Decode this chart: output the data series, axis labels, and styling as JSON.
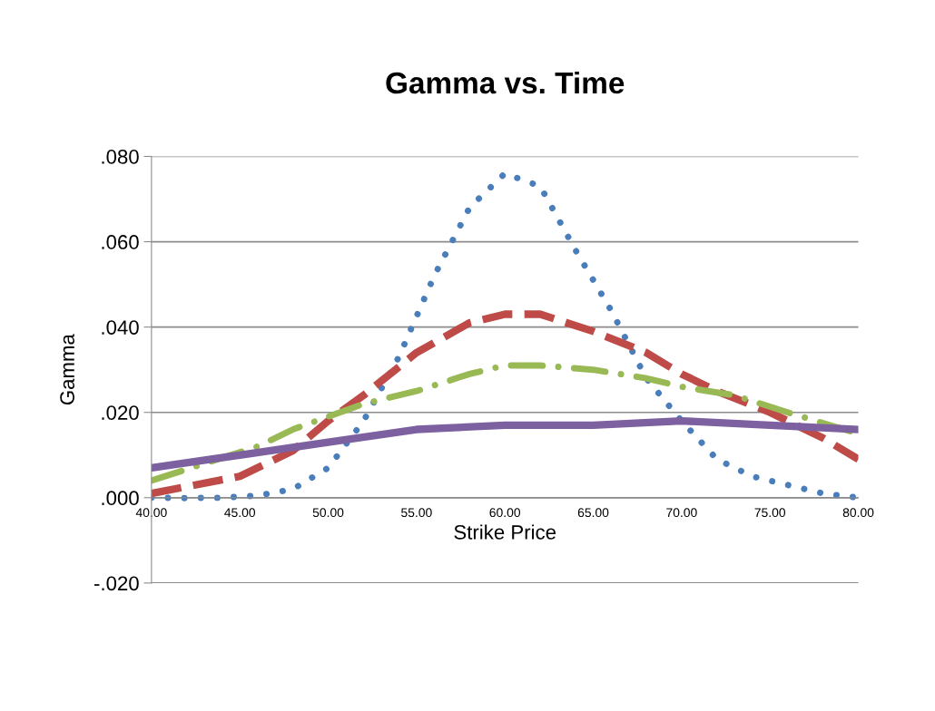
{
  "chart_data": {
    "type": "line",
    "title": "Gamma vs. Time",
    "xlabel": "Strike Price",
    "ylabel": "Gamma",
    "xlim": [
      40,
      80
    ],
    "xticks": [
      {
        "value": 40,
        "label": "40.00"
      },
      {
        "value": 45,
        "label": "45.00"
      },
      {
        "value": 50,
        "label": "50.00"
      },
      {
        "value": 55,
        "label": "55.00"
      },
      {
        "value": 60,
        "label": "60.00"
      },
      {
        "value": 65,
        "label": "65.00"
      },
      {
        "value": 70,
        "label": "70.00"
      },
      {
        "value": 75,
        "label": "75.00"
      },
      {
        "value": 80,
        "label": "80.00"
      }
    ],
    "ylim": [
      -0.02,
      0.08
    ],
    "yticks": [
      {
        "value": -0.02,
        "label": "-.020"
      },
      {
        "value": 0,
        "label": ".000"
      },
      {
        "value": 0.02,
        "label": ".020"
      },
      {
        "value": 0.04,
        "label": ".040"
      },
      {
        "value": 0.06,
        "label": ".060"
      },
      {
        "value": 0.08,
        "label": ".080"
      }
    ],
    "grid": "y",
    "legend": false,
    "marker": "none",
    "series": [
      {
        "color": "#4a7ebb",
        "line_style": "dotted",
        "x": [
          40,
          42,
          44,
          46,
          48,
          50,
          52,
          54,
          56,
          58,
          60,
          62,
          64,
          66,
          68,
          70,
          72,
          74,
          76,
          78,
          80
        ],
        "values": [
          0.0,
          -0.0001,
          0.0,
          0.0005,
          0.002,
          0.007,
          0.018,
          0.033,
          0.052,
          0.068,
          0.076,
          0.073,
          0.058,
          0.044,
          0.028,
          0.018,
          0.009,
          0.005,
          0.003,
          0.001,
          0.0
        ]
      },
      {
        "color": "#be4b48",
        "line_style": "dashed",
        "x": [
          40,
          45,
          48,
          50,
          52,
          55,
          58,
          60,
          62,
          65,
          68,
          70,
          72,
          75,
          78,
          80
        ],
        "values": [
          0.001,
          0.005,
          0.011,
          0.018,
          0.024,
          0.034,
          0.041,
          0.043,
          0.043,
          0.039,
          0.034,
          0.029,
          0.025,
          0.02,
          0.014,
          0.009
        ]
      },
      {
        "color": "#98b954",
        "line_style": "dashdot",
        "x": [
          40,
          43,
          46,
          48,
          50,
          52,
          55,
          58,
          60,
          62,
          65,
          68,
          70,
          73,
          76,
          80
        ],
        "values": [
          0.004,
          0.008,
          0.012,
          0.016,
          0.019,
          0.022,
          0.025,
          0.029,
          0.031,
          0.031,
          0.03,
          0.028,
          0.026,
          0.024,
          0.02,
          0.015
        ]
      },
      {
        "color": "#7d60a0",
        "line_style": "solid",
        "x": [
          40,
          45,
          50,
          55,
          60,
          65,
          70,
          75,
          80
        ],
        "values": [
          0.007,
          0.01,
          0.013,
          0.016,
          0.017,
          0.017,
          0.018,
          0.017,
          0.016
        ]
      }
    ]
  }
}
